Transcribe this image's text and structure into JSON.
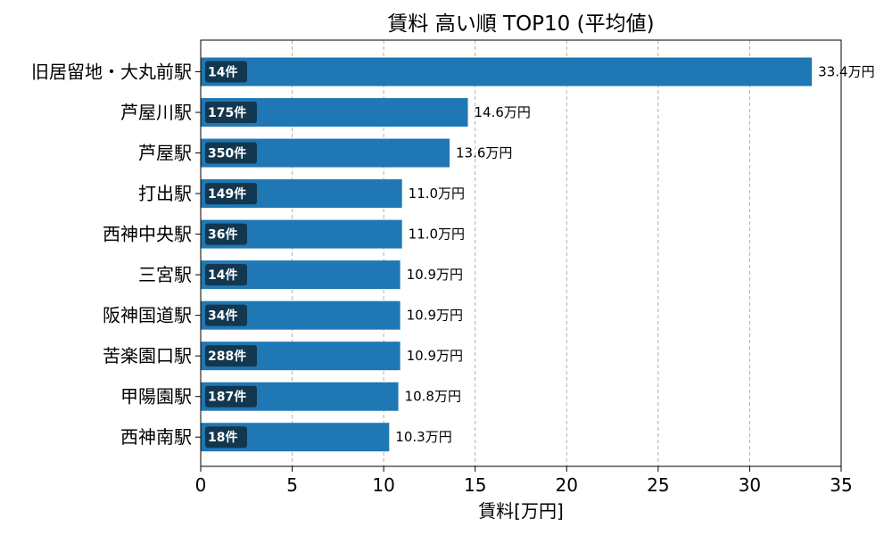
{
  "chart_data": {
    "type": "bar",
    "orientation": "horizontal",
    "title": "賃料 高い順 TOP10 (平均値)",
    "xlabel": "賃料[万円]",
    "ylabel": "",
    "xlim": [
      0,
      35
    ],
    "xticks": [
      "0",
      "5",
      "10",
      "15",
      "20",
      "25",
      "30",
      "35"
    ],
    "grid": "x-dashed",
    "categories": [
      "旧居留地・大丸前駅",
      "芦屋川駅",
      "芦屋駅",
      "打出駅",
      "西神中央駅",
      "三宮駅",
      "阪神国道駅",
      "苦楽園口駅",
      "甲陽園駅",
      "西神南駅"
    ],
    "values": [
      33.4,
      14.6,
      13.6,
      11.0,
      11.0,
      10.9,
      10.9,
      10.9,
      10.8,
      10.3
    ],
    "value_labels": [
      "33.4万円",
      "14.6万円",
      "13.6万円",
      "11.0万円",
      "11.0万円",
      "10.9万円",
      "10.9万円",
      "10.9万円",
      "10.8万円",
      "10.3万円"
    ],
    "counts": [
      "14件",
      "175件",
      "350件",
      "149件",
      "36件",
      "14件",
      "34件",
      "288件",
      "187件",
      "18件"
    ],
    "bar_color": "#1f77b4",
    "badge_color": "#12374f"
  }
}
